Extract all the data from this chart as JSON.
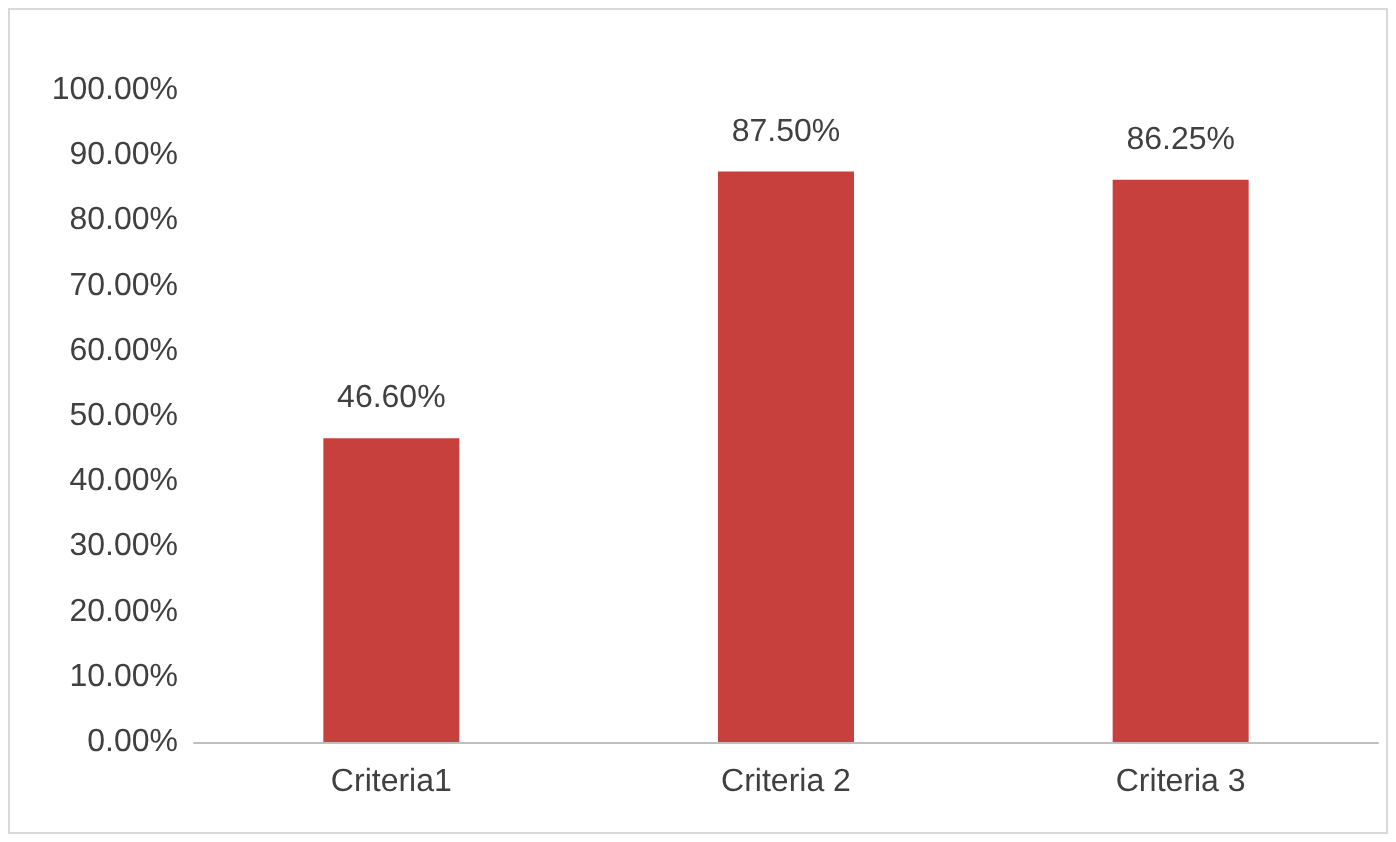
{
  "chart_data": {
    "type": "bar",
    "categories": [
      "Criteria1",
      "Criteria 2",
      "Criteria 3"
    ],
    "values": [
      46.6,
      87.5,
      86.25
    ],
    "color": "#c8403d",
    "value_labels": [
      "46.60%",
      "87.50%",
      "86.25%"
    ],
    "ylim": [
      0,
      100
    ],
    "yticks": [
      {
        "value": 0,
        "label": "0.00%"
      },
      {
        "value": 10,
        "label": "10.00%"
      },
      {
        "value": 20,
        "label": "20.00%"
      },
      {
        "value": 30,
        "label": "30.00%"
      },
      {
        "value": 40,
        "label": "40.00%"
      },
      {
        "value": 50,
        "label": "50.00%"
      },
      {
        "value": 60,
        "label": "60.00%"
      },
      {
        "value": 70,
        "label": "70.00%"
      },
      {
        "value": 80,
        "label": "80.00%"
      },
      {
        "value": 90,
        "label": "90.00%"
      },
      {
        "value": 100,
        "label": "100.00%"
      }
    ],
    "grid": false
  }
}
